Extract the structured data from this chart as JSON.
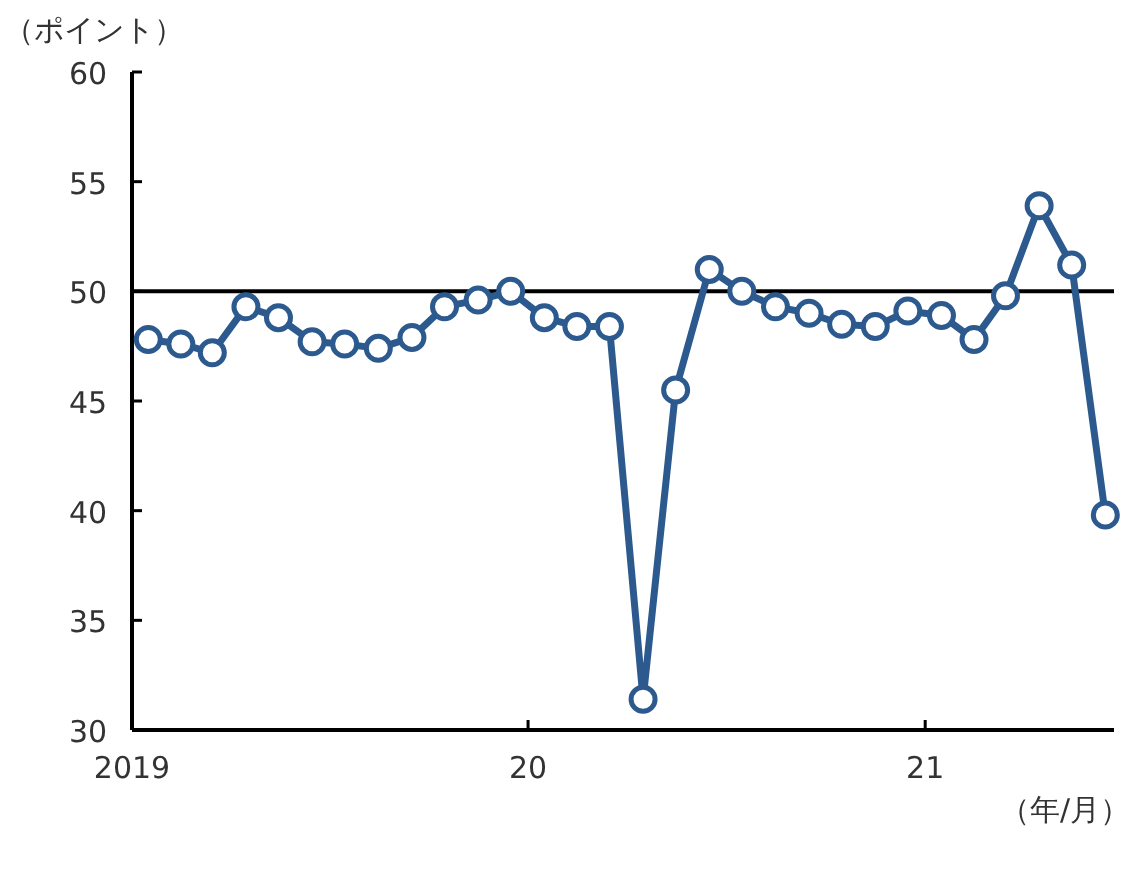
{
  "chart_data": {
    "type": "line",
    "ylabel": "（ポイント）",
    "xlabel": "（年/月）",
    "x": [
      "2019-01-16",
      "2019-02-15",
      "2019-03-16",
      "2019-04-16",
      "2019-05-16",
      "2019-06-16",
      "2019-07-16",
      "2019-08-16",
      "2019-09-16",
      "2019-10-16",
      "2019-11-16",
      "2019-12-16",
      "2020-01-16",
      "2020-02-15",
      "2020-03-16",
      "2020-04-16",
      "2020-05-16",
      "2020-06-16",
      "2020-07-16",
      "2020-08-16",
      "2020-09-16",
      "2020-10-16",
      "2020-11-16",
      "2020-12-16",
      "2021-01-16",
      "2021-02-15",
      "2021-03-16",
      "2021-04-16",
      "2021-05-16",
      "2021-06-16"
    ],
    "series": [
      {
        "color": "#2d5a8e",
        "values": [
          47.8,
          47.6,
          47.2,
          49.3,
          48.8,
          47.7,
          47.6,
          47.4,
          47.9,
          49.3,
          49.6,
          50.0,
          48.8,
          48.4,
          48.4,
          31.4,
          45.5,
          51.0,
          50.0,
          49.3,
          49.0,
          48.5,
          48.4,
          49.1,
          48.9,
          47.8,
          49.8,
          53.9,
          51.2,
          39.8
        ]
      }
    ],
    "xlim": [
      "2019-01",
      "2021-06-24"
    ],
    "xticks": [
      {
        "value": "2019-01",
        "label": "2019"
      },
      {
        "value": "2020-01",
        "label": "20"
      },
      {
        "value": "2021-01",
        "label": "21"
      }
    ],
    "ylim": [
      30,
      60
    ],
    "yticks": [
      30,
      35,
      40,
      45,
      50,
      55,
      60
    ],
    "ref_lines": [
      {
        "axis": "y",
        "value": 50,
        "color": "#000000"
      }
    ],
    "marker": "circle",
    "line_style": "solid",
    "grid": false
  }
}
